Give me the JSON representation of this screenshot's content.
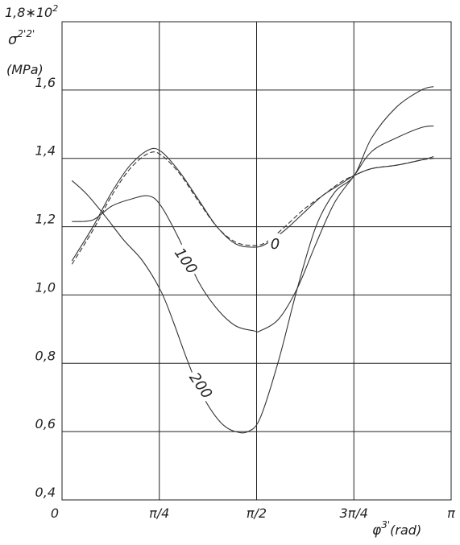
{
  "chart_data": {
    "type": "line",
    "ylabel_scale": "1,8∗10",
    "ylabel_scale_exp": "2",
    "ylabel_symbol": "σ",
    "ylabel_sup": "2'2'",
    "ylabel_unit": "(MPa)",
    "xlabel_symbol": "φ",
    "xlabel_sup": "3'",
    "xlabel_unit": "(rad)",
    "xlim": [
      0,
      3.14159
    ],
    "ylim": [
      0.4,
      1.8
    ],
    "x_ticks": [
      {
        "value": 0,
        "label": "0"
      },
      {
        "value": 0.7854,
        "label": "π/4"
      },
      {
        "value": 1.5708,
        "label": "π/2"
      },
      {
        "value": 2.3562,
        "label": "3π/4"
      },
      {
        "value": 3.14159,
        "label": "π"
      }
    ],
    "y_ticks": [
      {
        "value": 0.4,
        "label": "0,4"
      },
      {
        "value": 0.6,
        "label": "0,6"
      },
      {
        "value": 0.8,
        "label": "0,8"
      },
      {
        "value": 1.0,
        "label": "1,0"
      },
      {
        "value": 1.2,
        "label": "1,2"
      },
      {
        "value": 1.4,
        "label": "1,4"
      },
      {
        "value": 1.6,
        "label": "1,6"
      }
    ],
    "grid": true,
    "series": [
      {
        "name": "0",
        "style": "solid",
        "x": [
          0.08,
          0.25,
          0.4,
          0.55,
          0.7,
          0.8,
          0.95,
          1.1,
          1.25,
          1.4,
          1.55,
          1.65,
          1.8,
          1.95,
          2.1,
          2.25,
          2.36,
          2.5,
          2.7,
          2.9,
          3.0
        ],
        "y": [
          1.1,
          1.2,
          1.3,
          1.38,
          1.425,
          1.42,
          1.36,
          1.28,
          1.2,
          1.15,
          1.14,
          1.15,
          1.19,
          1.24,
          1.29,
          1.325,
          1.35,
          1.37,
          1.38,
          1.395,
          1.405
        ]
      },
      {
        "name": "",
        "style": "dashed",
        "x": [
          0.08,
          0.25,
          0.4,
          0.55,
          0.7,
          0.8,
          0.95,
          1.1,
          1.25,
          1.4,
          1.55,
          1.65,
          1.8,
          1.95,
          2.1,
          2.25,
          2.36,
          2.5,
          2.7,
          2.9,
          3.0
        ],
        "y": [
          1.09,
          1.19,
          1.29,
          1.37,
          1.415,
          1.41,
          1.355,
          1.275,
          1.2,
          1.155,
          1.145,
          1.155,
          1.2,
          1.25,
          1.29,
          1.33,
          1.35,
          1.37,
          1.38,
          1.395,
          1.4
        ]
      },
      {
        "name": "100",
        "style": "solid",
        "x": [
          0.08,
          0.25,
          0.4,
          0.55,
          0.7,
          0.8,
          0.95,
          1.1,
          1.25,
          1.4,
          1.55,
          1.6,
          1.75,
          1.9,
          2.05,
          2.2,
          2.36,
          2.5,
          2.7,
          2.9,
          3.0
        ],
        "y": [
          1.215,
          1.22,
          1.26,
          1.28,
          1.29,
          1.26,
          1.16,
          1.04,
          0.96,
          0.91,
          0.895,
          0.895,
          0.93,
          1.02,
          1.15,
          1.27,
          1.35,
          1.42,
          1.46,
          1.49,
          1.495
        ]
      },
      {
        "name": "200",
        "style": "solid",
        "x": [
          0.08,
          0.2,
          0.35,
          0.5,
          0.65,
          0.8,
          0.9,
          1.0,
          1.1,
          1.2,
          1.3,
          1.4,
          1.5,
          1.6,
          1.75,
          1.9,
          2.05,
          2.2,
          2.36,
          2.5,
          2.7,
          2.9,
          3.0
        ],
        "y": [
          1.335,
          1.295,
          1.23,
          1.16,
          1.1,
          1.01,
          0.92,
          0.82,
          0.73,
          0.665,
          0.62,
          0.6,
          0.6,
          0.64,
          0.81,
          1.02,
          1.2,
          1.3,
          1.35,
          1.46,
          1.55,
          1.6,
          1.61
        ]
      }
    ],
    "curve_labels": [
      {
        "text": "0",
        "series": 0,
        "x": 1.72,
        "y": 1.15,
        "rotate": 0
      },
      {
        "text": "100",
        "series": 2,
        "x": 1.0,
        "y": 1.1,
        "rotate": 55
      },
      {
        "text": "200",
        "series": 3,
        "x": 1.12,
        "y": 0.735,
        "rotate": 55
      }
    ]
  }
}
